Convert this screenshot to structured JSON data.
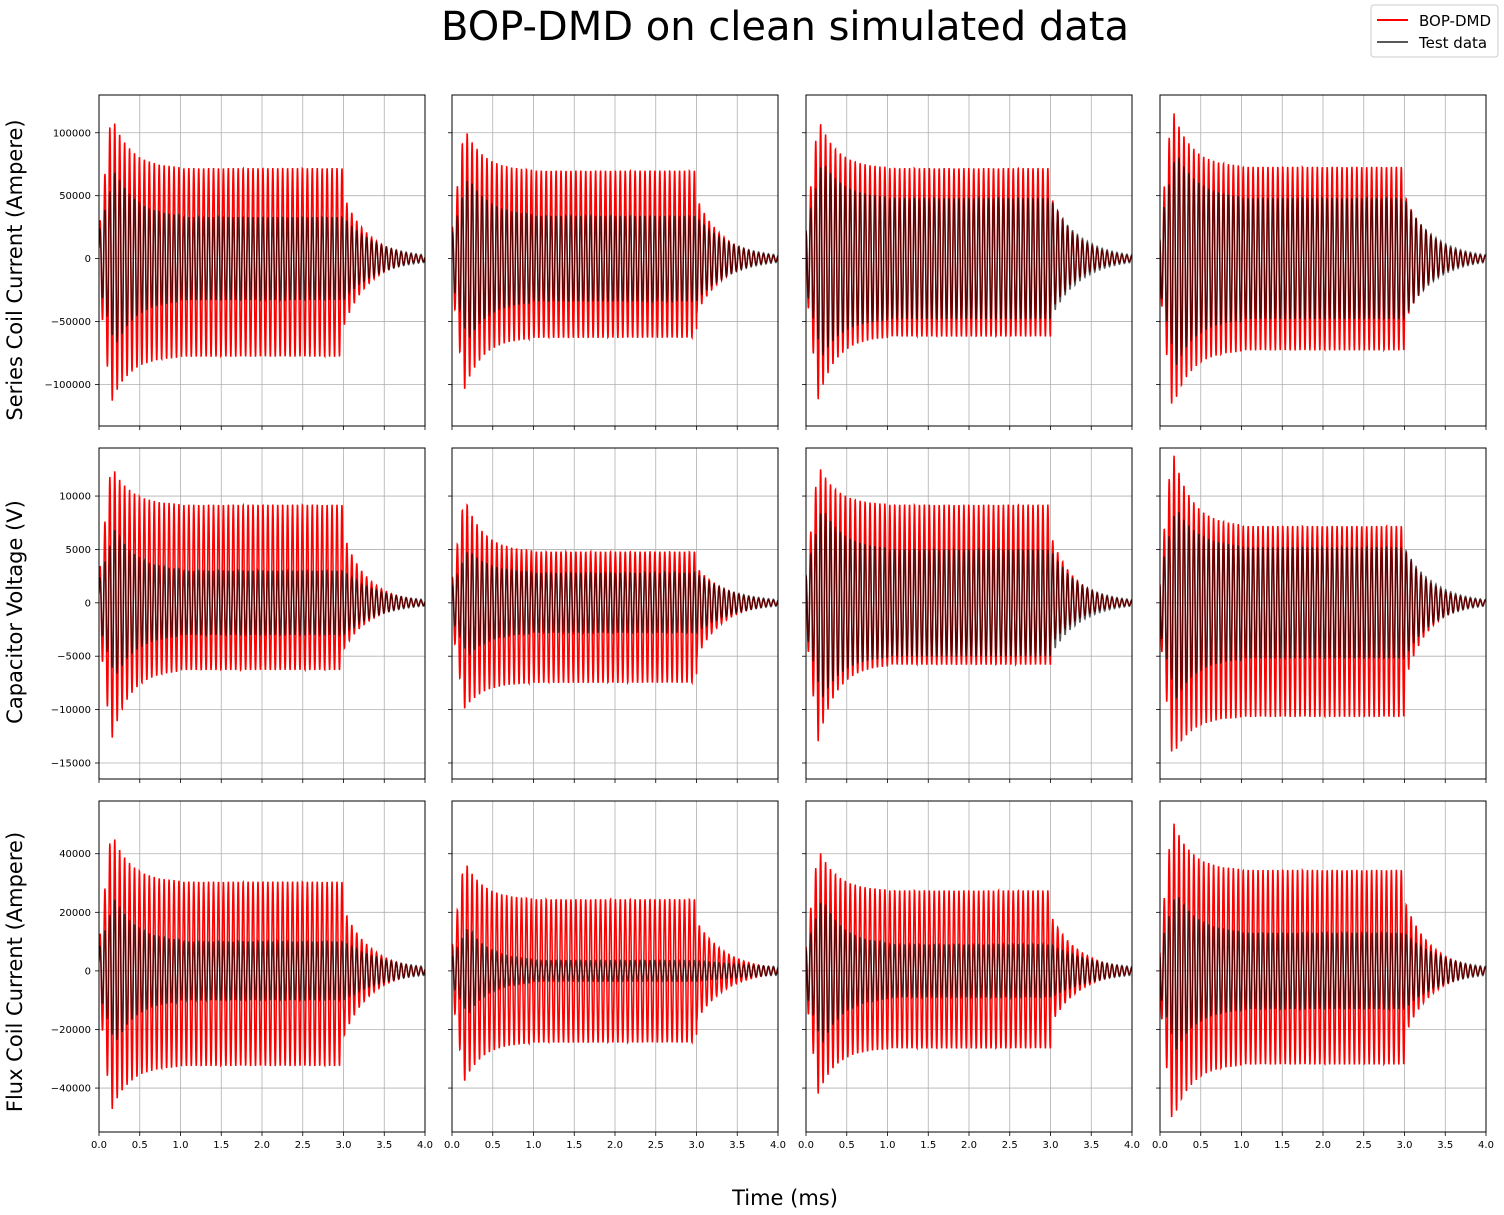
{
  "figure": {
    "title": "BOP-DMD on clean simulated data",
    "xlabel": "Time (ms)",
    "row_labels": [
      "Series Coil Current (Ampere)",
      "Capacitor Voltage (V)",
      "Flux Coil Current (Ampere)"
    ],
    "legend": [
      {
        "name": "BOP-DMD",
        "color": "#ff0000"
      },
      {
        "name": "Test data",
        "color": "#000000"
      }
    ]
  },
  "chart_data": {
    "type": "line",
    "grid": true,
    "legend_placement": "top-right",
    "layout": "3 rows x 4 columns, shared axes per row",
    "x_range": [
      0,
      4
    ],
    "x_ticks": [
      0.0,
      0.5,
      1.0,
      1.5,
      2.0,
      2.5,
      3.0,
      3.5,
      4.0
    ],
    "x_tick_labels": [
      "0.0",
      "0.5",
      "1.0",
      "1.5",
      "2.0",
      "2.5",
      "3.0",
      "3.5",
      "4.0"
    ],
    "oscillation_frequency_per_ms": 16.5,
    "series": [
      "BOP-DMD",
      "Test data"
    ],
    "rows": [
      {
        "ylabel": "Series Coil Current (Ampere)",
        "ylim": [
          -133000,
          130000
        ],
        "y_ticks": [
          -100000,
          -50000,
          0,
          50000,
          100000
        ],
        "y_tick_labels": [
          "−100000",
          "−50000",
          "0",
          "50000",
          "100000"
        ],
        "panels": [
          {
            "bop_dmd": {
              "peak_initial": 115000,
              "steady_max": 72000,
              "steady_min": -78000,
              "end_amp": 3000
            },
            "test_data": {
              "peak_initial": 70000,
              "steady_amp": 33000,
              "end_amp": 3000
            }
          },
          {
            "bop_dmd": {
              "peak_initial": 105000,
              "steady_max": 70000,
              "steady_min": -63000,
              "end_amp": 3000
            },
            "test_data": {
              "peak_initial": 65000,
              "steady_amp": 34000,
              "end_amp": 3000
            }
          },
          {
            "bop_dmd": {
              "peak_initial": 112000,
              "steady_max": 72000,
              "steady_min": -62000,
              "end_amp": 3000
            },
            "test_data": {
              "peak_initial": 78000,
              "steady_amp": 48000,
              "end_amp": 3000
            }
          },
          {
            "bop_dmd": {
              "peak_initial": 120000,
              "steady_max": 73000,
              "steady_min": -73000,
              "end_amp": 3000
            },
            "test_data": {
              "peak_initial": 85000,
              "steady_amp": 48000,
              "end_amp": 3000
            }
          }
        ]
      },
      {
        "ylabel": "Capacitor Voltage (V)",
        "ylim": [
          -16500,
          14500
        ],
        "y_ticks": [
          -15000,
          -10000,
          -5000,
          0,
          5000,
          10000
        ],
        "y_tick_labels": [
          "−15000",
          "−10000",
          "−5000",
          "0",
          "5000",
          "10000"
        ],
        "panels": [
          {
            "bop_dmd": {
              "peak_initial": 13000,
              "steady_max": 9200,
              "steady_min": -6300,
              "end_amp": 300
            },
            "test_data": {
              "peak_initial": 7000,
              "steady_amp": 3000,
              "end_amp": 300
            }
          },
          {
            "bop_dmd": {
              "peak_initial": 10000,
              "steady_max": 4800,
              "steady_min": -7500,
              "end_amp": 300
            },
            "test_data": {
              "peak_initial": 5000,
              "steady_amp": 2800,
              "end_amp": 300
            }
          },
          {
            "bop_dmd": {
              "peak_initial": 13000,
              "steady_max": 9200,
              "steady_min": -5800,
              "end_amp": 300
            },
            "test_data": {
              "peak_initial": 9000,
              "steady_amp": 5000,
              "end_amp": 300
            }
          },
          {
            "bop_dmd": {
              "peak_initial": 14500,
              "steady_max": 7200,
              "steady_min": -10700,
              "end_amp": 300
            },
            "test_data": {
              "peak_initial": 9000,
              "steady_amp": 5200,
              "end_amp": 300
            }
          }
        ]
      },
      {
        "ylabel": "Flux Coil Current (Ampere)",
        "ylim": [
          -55000,
          58000
        ],
        "y_ticks": [
          -40000,
          -20000,
          0,
          20000,
          40000
        ],
        "y_tick_labels": [
          "−40000",
          "−20000",
          "0",
          "20000",
          "40000"
        ],
        "panels": [
          {
            "bop_dmd": {
              "peak_initial": 48000,
              "steady_max": 30500,
              "steady_min": -32500,
              "end_amp": 1500
            },
            "test_data": {
              "peak_initial": 25000,
              "steady_amp": 10000,
              "end_amp": 1500
            }
          },
          {
            "bop_dmd": {
              "peak_initial": 38000,
              "steady_max": 24500,
              "steady_min": -24500,
              "end_amp": 1500
            },
            "test_data": {
              "peak_initial": 15000,
              "steady_amp": 3500,
              "end_amp": 1500
            }
          },
          {
            "bop_dmd": {
              "peak_initial": 42000,
              "steady_max": 27500,
              "steady_min": -26500,
              "end_amp": 1500
            },
            "test_data": {
              "peak_initial": 25000,
              "steady_amp": 9000,
              "end_amp": 1500
            }
          },
          {
            "bop_dmd": {
              "peak_initial": 52000,
              "steady_max": 34500,
              "steady_min": -32000,
              "end_amp": 1500
            },
            "test_data": {
              "peak_initial": 27000,
              "steady_amp": 13000,
              "end_amp": 1500
            }
          }
        ]
      }
    ]
  }
}
